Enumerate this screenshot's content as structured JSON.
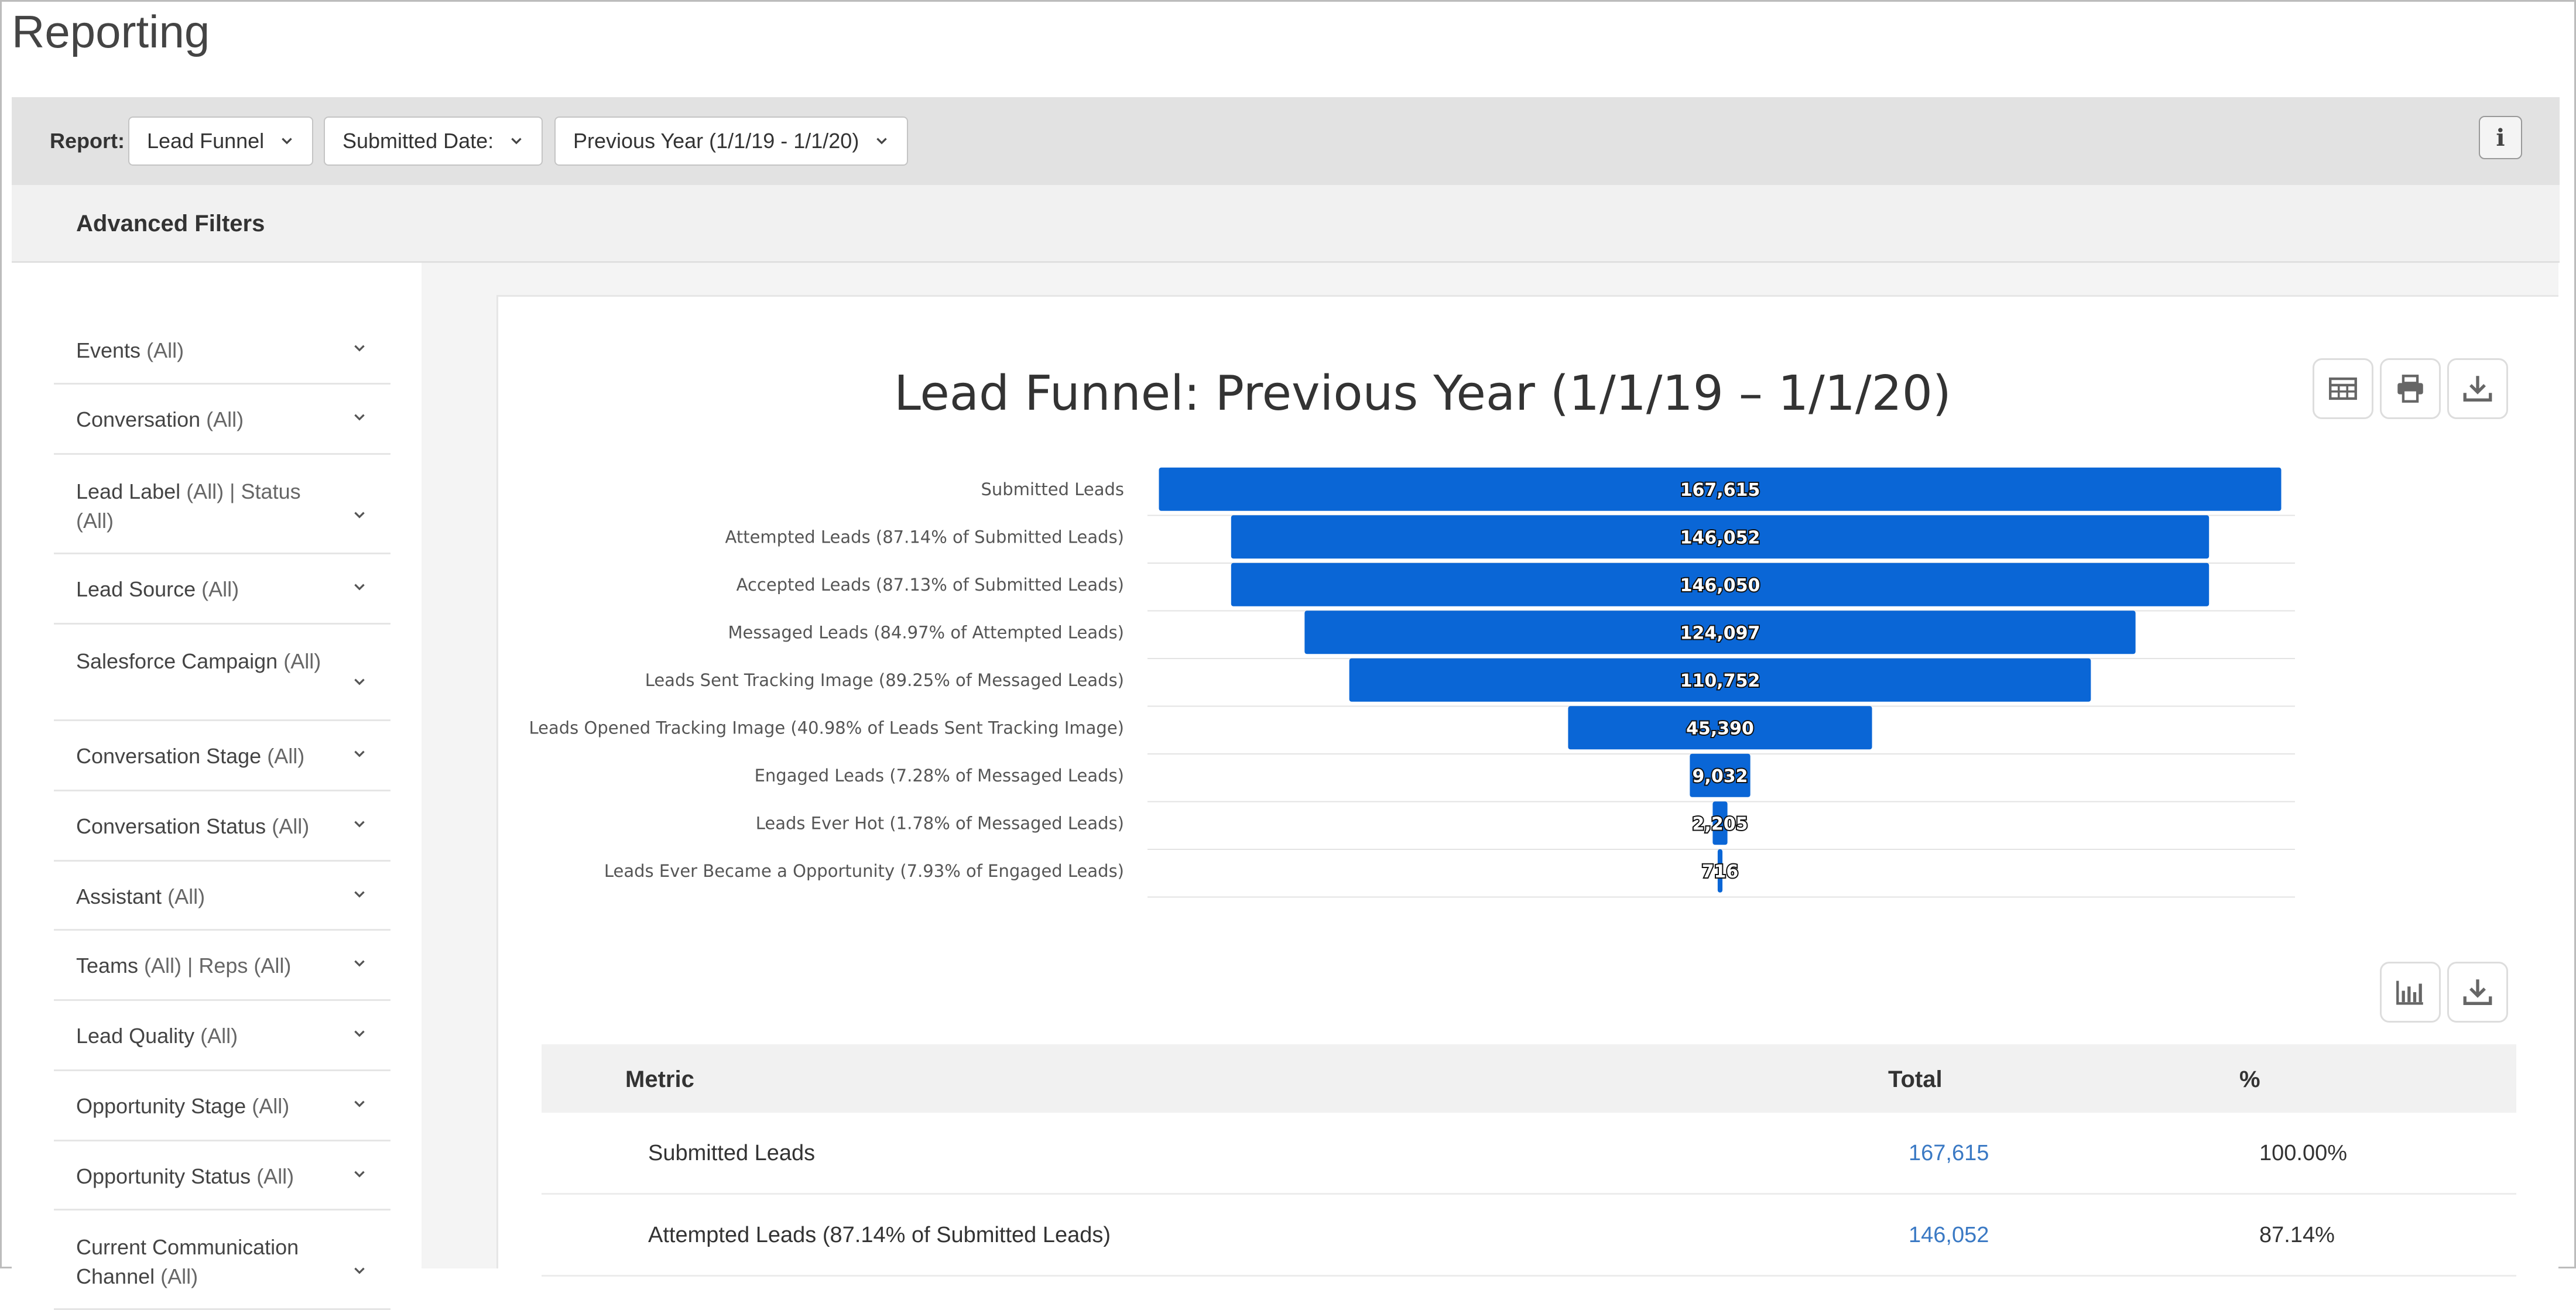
{
  "page": {
    "title": "Reporting"
  },
  "filter_bar": {
    "report_label": "Report:",
    "report_value": "Lead Funnel",
    "date_field_value": "Submitted Date:",
    "date_range_value": "Previous Year (1/1/19 - 1/1/20)",
    "info_icon": "info-icon"
  },
  "advanced_filters": {
    "title": "Advanced Filters",
    "items": [
      {
        "name": "Events",
        "value": "(All)"
      },
      {
        "name": "Conversation",
        "value": "(All)"
      },
      {
        "name": "Lead Label",
        "value": "(All) | Status (All)"
      },
      {
        "name": "Lead Source",
        "value": "(All)"
      },
      {
        "name": "Salesforce Campaign",
        "value": "(All)"
      },
      {
        "name": "Conversation Stage",
        "value": "(All)"
      },
      {
        "name": "Conversation Status",
        "value": "(All)"
      },
      {
        "name": "Assistant",
        "value": "(All)"
      },
      {
        "name": "Teams",
        "value": "(All) | Reps (All)"
      },
      {
        "name": "Lead Quality",
        "value": "(All)"
      },
      {
        "name": "Opportunity Stage",
        "value": "(All)"
      },
      {
        "name": "Opportunity Status",
        "value": "(All)"
      },
      {
        "name": "Current Communication Channel",
        "value": "(All)"
      }
    ]
  },
  "chart_toolbar_icons": [
    "table-icon",
    "print-icon",
    "download-icon"
  ],
  "table_toolbar_icons": [
    "bar-chart-icon",
    "download-icon"
  ],
  "chart_data": {
    "type": "bar",
    "orientation": "horizontal-funnel",
    "title": "Lead Funnel: Previous Year (1/1/19 – 1/1/20)",
    "categories": [
      "Submitted Leads",
      "Attempted Leads (87.14% of Submitted Leads)",
      "Accepted Leads (87.13% of Submitted Leads)",
      "Messaged Leads (84.97% of Attempted Leads)",
      "Leads Sent Tracking Image (89.25% of Messaged Leads)",
      "Leads Opened Tracking Image (40.98% of Leads Sent Tracking Image)",
      "Engaged Leads (7.28% of Messaged Leads)",
      "Leads Ever Hot (1.78% of Messaged Leads)",
      "Leads Ever Became a Opportunity (7.93% of Engaged Leads)"
    ],
    "values": [
      167615,
      146052,
      146050,
      124097,
      110752,
      45390,
      9032,
      2205,
      716
    ],
    "value_labels": [
      "167,615",
      "146,052",
      "146,050",
      "124,097",
      "110,752",
      "45,390",
      "9,032",
      "2,205",
      "716"
    ],
    "bar_color": "#0a66d6",
    "grid": true
  },
  "table": {
    "headers": {
      "metric": "Metric",
      "total": "Total",
      "percent": "%"
    },
    "rows": [
      {
        "metric": "Submitted Leads",
        "total": "167,615",
        "percent": "100.00%"
      },
      {
        "metric": "Attempted Leads (87.14% of Submitted Leads)",
        "total": "146,052",
        "percent": "87.14%"
      }
    ]
  }
}
